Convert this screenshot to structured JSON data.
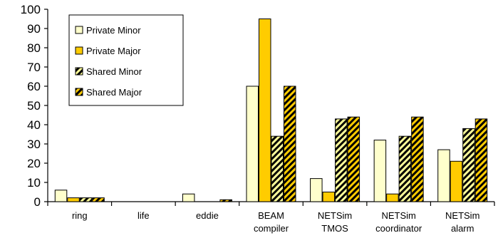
{
  "chart_data": {
    "type": "bar",
    "title": "",
    "xlabel": "",
    "ylabel": "",
    "ylim": [
      0,
      100
    ],
    "yticks": [
      0,
      10,
      20,
      30,
      40,
      50,
      60,
      70,
      80,
      90,
      100
    ],
    "grid": {
      "horizontal": false,
      "vertical": false
    },
    "legend_position": "top-left",
    "categories": [
      [
        "ring"
      ],
      [
        "life"
      ],
      [
        "eddie"
      ],
      [
        "BEAM",
        "compiler"
      ],
      [
        "NETSim",
        "TMOS"
      ],
      [
        "NETSim",
        "coordinator"
      ],
      [
        "NETSim",
        "alarm"
      ]
    ],
    "series": [
      {
        "name": "Private Minor",
        "color": "#FFFFCC",
        "pattern": "solid",
        "values": [
          6,
          0,
          4,
          60,
          12,
          32,
          27
        ]
      },
      {
        "name": "Private Major",
        "color": "#FFCC00",
        "pattern": "solid",
        "values": [
          2,
          0,
          0,
          95,
          5,
          4,
          21
        ]
      },
      {
        "name": "Shared Minor",
        "color": "#FFFF99",
        "pattern": "hatched",
        "values": [
          2,
          0,
          0,
          34,
          43,
          34,
          38
        ]
      },
      {
        "name": "Shared Major",
        "color": "#FFCC00",
        "pattern": "hatched",
        "values": [
          2,
          0,
          1,
          60,
          44,
          44,
          43
        ]
      }
    ]
  }
}
